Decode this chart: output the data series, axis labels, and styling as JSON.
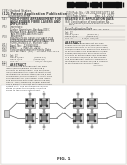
{
  "bg_color": "#f2efe9",
  "text_color": "#444444",
  "barcode_color": "#111111",
  "diagram_bg": "#ffffff",
  "box_gray": "#999999",
  "box_dark": "#555555",
  "box_mid": "#aaaaaa",
  "box_light": "#dddddd",
  "line_color": "#666666",
  "node_color": "#444444"
}
